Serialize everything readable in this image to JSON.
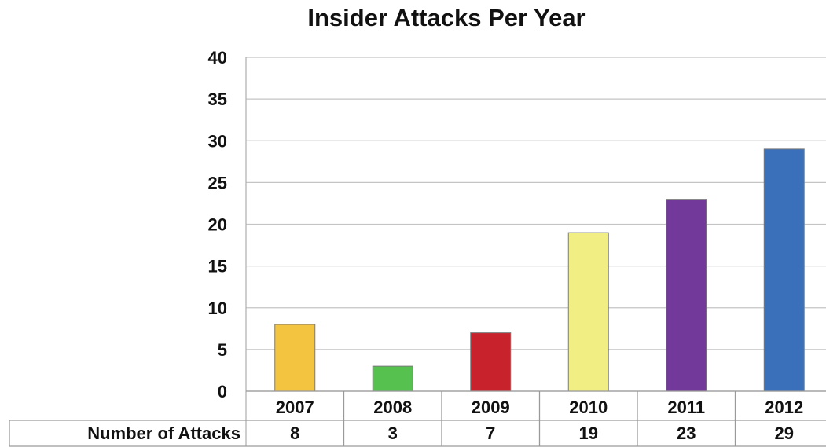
{
  "chart_data": {
    "type": "bar",
    "title": "Insider Attacks Per Year",
    "categories": [
      "2007",
      "2008",
      "2009",
      "2010",
      "2011",
      "2012"
    ],
    "series": [
      {
        "name": "Number of Attacks",
        "values": [
          8,
          3,
          7,
          19,
          23,
          29
        ],
        "colors": [
          "#f2c440",
          "#56c14f",
          "#c8232c",
          "#f1ee83",
          "#72389a",
          "#3a6fba"
        ]
      }
    ],
    "ylim": [
      0,
      40
    ],
    "yticks": [
      "0",
      "5",
      "10",
      "15",
      "20",
      "25",
      "30",
      "35",
      "40"
    ],
    "grid": true,
    "legend": "none",
    "data_table": {
      "row_header": "Number of Attacks",
      "values": [
        "8",
        "3",
        "7",
        "19",
        "23",
        "29"
      ]
    }
  }
}
